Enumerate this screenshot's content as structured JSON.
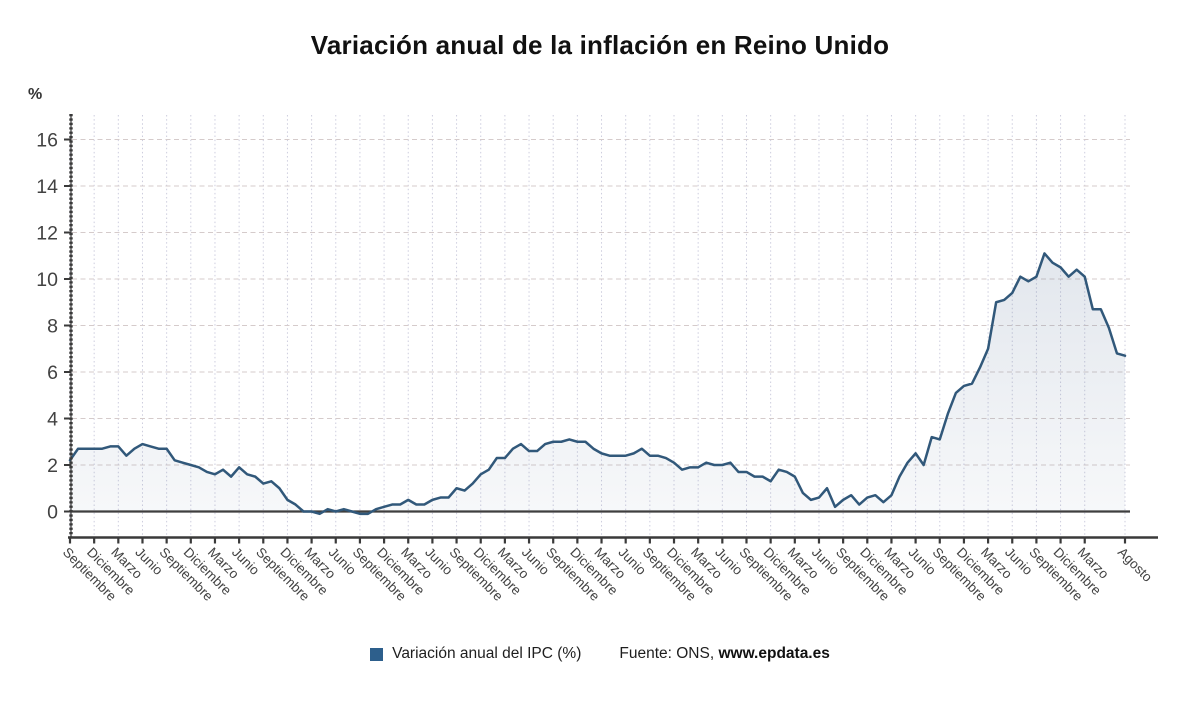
{
  "title": "Variación anual de la inflación en Reino Unido",
  "y_axis_unit": "%",
  "legend": {
    "series_label": "Variación anual del IPC (%)",
    "source_prefix": "Fuente: ONS, ",
    "source_link": "www.epdata.es"
  },
  "colors": {
    "line": "#31587a",
    "legend_swatch": "#2d5f8c",
    "zero_line": "#3f3f3f",
    "axis": "#3a3a3a",
    "grid_h": "#d5cbcb",
    "grid_v": "#cdcdde",
    "tick_label": "#424242",
    "area_top": "rgba(95,120,155,0.18)",
    "area_bottom": "rgba(95,120,155,0.05)"
  },
  "chart_data": {
    "type": "area",
    "title": "Variación anual de la inflación en Reino Unido",
    "xlabel": "",
    "ylabel": "%",
    "ylim": [
      -1.1,
      17.1
    ],
    "y_ticks": [
      0,
      2,
      4,
      6,
      8,
      10,
      12,
      14,
      16
    ],
    "grid": true,
    "legend_position": "bottom-center",
    "frequency": "monthly",
    "x_start": "Septiembre 2012",
    "x_end": "Agosto 2023",
    "x_tick_indices": [
      0,
      3,
      6,
      9,
      12,
      15,
      18,
      21,
      24,
      27,
      30,
      33,
      36,
      39,
      42,
      45,
      48,
      51,
      54,
      57,
      60,
      63,
      66,
      69,
      72,
      75,
      78,
      81,
      84,
      87,
      90,
      93,
      96,
      99,
      102,
      105,
      108,
      111,
      114,
      117,
      120,
      123,
      126,
      131
    ],
    "x_tick_labels": [
      "Septiembre",
      "Diciembre",
      "Marzo",
      "Junio",
      "Septiembre",
      "Diciembre",
      "Marzo",
      "Junio",
      "Septiembre",
      "Diciembre",
      "Marzo",
      "Junio",
      "Septiembre",
      "Diciembre",
      "Marzo",
      "Junio",
      "Septiembre",
      "Diciembre",
      "Marzo",
      "Junio",
      "Septiembre",
      "Diciembre",
      "Marzo",
      "Junio",
      "Septiembre",
      "Diciembre",
      "Marzo",
      "Junio",
      "Septiembre",
      "Diciembre",
      "Marzo",
      "Junio",
      "Septiembre",
      "Diciembre",
      "Marzo",
      "Junio",
      "Septiembre",
      "Diciembre",
      "Marzo",
      "Junio",
      "Septiembre",
      "Diciembre",
      "Marzo",
      "Agosto"
    ],
    "series": [
      {
        "name": "Variación anual del IPC (%)",
        "values": [
          2.2,
          2.7,
          2.7,
          2.7,
          2.7,
          2.8,
          2.8,
          2.4,
          2.7,
          2.9,
          2.8,
          2.7,
          2.7,
          2.2,
          2.1,
          2.0,
          1.9,
          1.7,
          1.6,
          1.8,
          1.5,
          1.9,
          1.6,
          1.5,
          1.2,
          1.3,
          1.0,
          0.5,
          0.3,
          0.0,
          0.0,
          -0.1,
          0.1,
          0.0,
          0.1,
          0.0,
          -0.1,
          -0.1,
          0.1,
          0.2,
          0.3,
          0.3,
          0.5,
          0.3,
          0.3,
          0.5,
          0.6,
          0.6,
          1.0,
          0.9,
          1.2,
          1.6,
          1.8,
          2.3,
          2.3,
          2.7,
          2.9,
          2.6,
          2.6,
          2.9,
          3.0,
          3.0,
          3.1,
          3.0,
          3.0,
          2.7,
          2.5,
          2.4,
          2.4,
          2.4,
          2.5,
          2.7,
          2.4,
          2.4,
          2.3,
          2.1,
          1.8,
          1.9,
          1.9,
          2.1,
          2.0,
          2.0,
          2.1,
          1.7,
          1.7,
          1.5,
          1.5,
          1.3,
          1.8,
          1.7,
          1.5,
          0.8,
          0.5,
          0.6,
          1.0,
          0.2,
          0.5,
          0.7,
          0.3,
          0.6,
          0.7,
          0.4,
          0.7,
          1.5,
          2.1,
          2.5,
          2.0,
          3.2,
          3.1,
          4.2,
          5.1,
          5.4,
          5.5,
          6.2,
          7.0,
          9.0,
          9.1,
          9.4,
          10.1,
          9.9,
          10.1,
          11.1,
          10.7,
          10.5,
          10.1,
          10.4,
          10.1,
          8.7,
          8.7,
          7.9,
          6.8,
          6.7
        ]
      }
    ]
  }
}
